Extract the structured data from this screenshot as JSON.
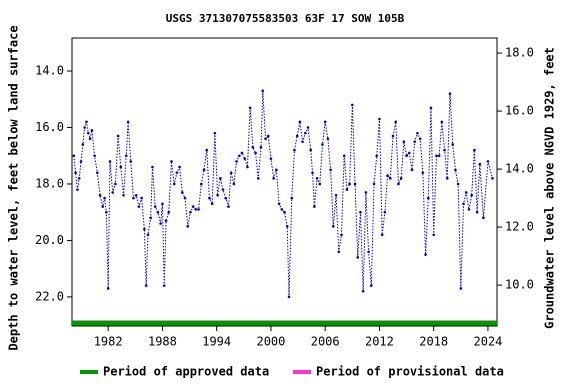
{
  "chart_data": {
    "type": "line",
    "title": "USGS 371307075583503 63F 17 SOW 105B",
    "y_label": "Depth to water level, feet below land surface",
    "y2_label": "Groundwater level above NGVD 1929, feet",
    "xlim": [
      1978.0,
      2025.0
    ],
    "xticks": [
      1982,
      1988,
      1994,
      2000,
      2006,
      2012,
      2018,
      2024
    ],
    "ylim": [
      23.03,
      12.83
    ],
    "yticks": [
      {
        "value": 14,
        "label": "14.0"
      },
      {
        "value": 16,
        "label": "16.0"
      },
      {
        "value": 18,
        "label": "18.0"
      },
      {
        "value": 20,
        "label": "20.0"
      },
      {
        "value": 22,
        "label": "22.0"
      }
    ],
    "y2lim": [
      8.59,
      18.52
    ],
    "y2ticks": [
      {
        "value": 10,
        "label": "10.0"
      },
      {
        "value": 12,
        "label": "12.0"
      },
      {
        "value": 14,
        "label": "14.0"
      },
      {
        "value": 16,
        "label": "16.0"
      },
      {
        "value": 18,
        "label": "18.0"
      }
    ],
    "x": [
      1978.2,
      1978.4,
      1978.6,
      1978.8,
      1979.0,
      1979.2,
      1979.4,
      1979.6,
      1979.8,
      1980.0,
      1980.2,
      1980.5,
      1980.8,
      1981.1,
      1981.4,
      1981.6,
      1981.8,
      1982.0,
      1982.2,
      1982.5,
      1982.8,
      1983.1,
      1983.4,
      1983.7,
      1984.0,
      1984.2,
      1984.5,
      1984.8,
      1985.1,
      1985.4,
      1985.7,
      1986.0,
      1986.2,
      1986.4,
      1986.7,
      1986.9,
      1987.2,
      1987.5,
      1987.8,
      1988.0,
      1988.2,
      1988.4,
      1988.7,
      1989.0,
      1989.3,
      1989.6,
      1989.9,
      1990.2,
      1990.5,
      1990.8,
      1991.1,
      1991.4,
      1991.7,
      1992.0,
      1992.3,
      1992.6,
      1992.9,
      1993.2,
      1993.5,
      1993.8,
      1994.1,
      1994.4,
      1994.7,
      1995.0,
      1995.3,
      1995.6,
      1995.9,
      1996.2,
      1996.5,
      1996.8,
      1997.1,
      1997.4,
      1997.7,
      1998.0,
      1998.3,
      1998.6,
      1998.9,
      1999.1,
      1999.4,
      1999.7,
      2000.0,
      2000.3,
      2000.6,
      2000.9,
      2001.2,
      2001.5,
      2001.8,
      2002.0,
      2002.3,
      2002.6,
      2002.9,
      2003.2,
      2003.5,
      2003.8,
      2004.1,
      2004.4,
      2004.6,
      2004.8,
      2005.1,
      2005.4,
      2005.7,
      2006.0,
      2006.3,
      2006.6,
      2006.9,
      2007.2,
      2007.5,
      2007.8,
      2008.1,
      2008.4,
      2008.7,
      2009.0,
      2009.3,
      2009.6,
      2009.9,
      2010.2,
      2010.5,
      2010.8,
      2011.1,
      2011.4,
      2011.7,
      2012.0,
      2012.3,
      2012.6,
      2012.9,
      2013.2,
      2013.5,
      2013.8,
      2014.1,
      2014.4,
      2014.7,
      2015.0,
      2015.3,
      2015.6,
      2015.9,
      2016.2,
      2016.5,
      2016.8,
      2017.1,
      2017.4,
      2017.7,
      2018.0,
      2018.3,
      2018.6,
      2018.9,
      2019.2,
      2019.5,
      2019.8,
      2020.1,
      2020.4,
      2020.7,
      2021.0,
      2021.3,
      2021.6,
      2021.9,
      2022.2,
      2022.5,
      2022.8,
      2023.1,
      2023.5,
      2024.0,
      2024.5
    ],
    "series": [
      {
        "name": "Depth to water level",
        "color": "#0000cc",
        "values": [
          17.0,
          17.6,
          18.2,
          17.8,
          17.2,
          16.6,
          16.0,
          15.8,
          16.2,
          16.4,
          16.1,
          17.0,
          17.6,
          18.4,
          18.8,
          18.5,
          19.0,
          21.7,
          17.2,
          18.3,
          18.0,
          16.3,
          17.4,
          18.4,
          17.0,
          15.8,
          17.2,
          18.5,
          18.4,
          18.8,
          18.5,
          19.6,
          21.6,
          19.8,
          19.2,
          17.4,
          18.8,
          19.0,
          19.4,
          18.7,
          21.6,
          19.3,
          19.0,
          17.2,
          18.0,
          17.6,
          17.4,
          18.3,
          18.5,
          19.5,
          19.0,
          18.8,
          18.9,
          18.9,
          18.0,
          17.5,
          16.8,
          18.5,
          18.7,
          16.2,
          18.4,
          17.8,
          18.2,
          18.5,
          18.8,
          17.6,
          18.0,
          17.2,
          17.0,
          16.9,
          17.1,
          17.4,
          15.3,
          16.7,
          16.9,
          17.8,
          16.7,
          14.7,
          16.4,
          16.3,
          17.1,
          17.8,
          17.5,
          18.7,
          18.9,
          19.0,
          19.5,
          22.0,
          18.5,
          16.8,
          16.3,
          15.8,
          16.5,
          16.2,
          16.0,
          16.8,
          17.6,
          18.8,
          17.8,
          18.0,
          16.6,
          15.8,
          16.4,
          17.5,
          19.5,
          18.4,
          20.4,
          19.8,
          17.0,
          18.2,
          18.0,
          15.2,
          18.0,
          20.6,
          19.0,
          21.8,
          18.3,
          20.4,
          21.6,
          18.0,
          17.0,
          15.7,
          19.8,
          19.0,
          17.7,
          17.8,
          16.3,
          15.8,
          18.0,
          17.8,
          16.5,
          17.0,
          16.9,
          17.5,
          16.5,
          16.2,
          16.4,
          17.6,
          20.5,
          18.5,
          15.3,
          19.8,
          17.0,
          17.0,
          15.8,
          16.8,
          17.8,
          14.8,
          16.6,
          17.5,
          18.0,
          21.7,
          18.7,
          18.3,
          18.9,
          18.4,
          16.8,
          19.0,
          17.3,
          19.2,
          17.2,
          17.8
        ]
      }
    ],
    "approved_period": [
      1978.0,
      2025.0
    ],
    "legend": [
      {
        "name": "Period of approved data",
        "color": "#009900"
      },
      {
        "name": "Period of provisional data",
        "color": "#ff33cc"
      }
    ]
  }
}
